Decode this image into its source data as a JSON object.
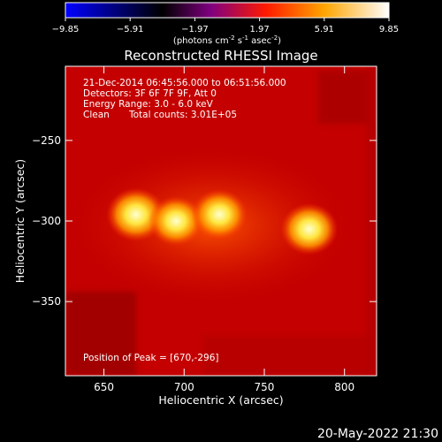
{
  "header": {
    "title": "Reconstructed RHESSI Image",
    "colorbar_unit_prefix": "(photons cm",
    "colorbar_unit_exp1": "-2",
    "colorbar_unit_mid": " s",
    "colorbar_unit_exp2": "-1",
    "colorbar_unit_mid2": " asec",
    "colorbar_unit_exp3": "-2",
    "colorbar_unit_suffix": ")"
  },
  "colorbar": {
    "range": [
      -9.85,
      9.85
    ],
    "tick_labels": [
      "−9.85",
      "−5.91",
      "−1.97",
      "1.97",
      "5.91",
      "9.85"
    ],
    "colors": [
      "#0000ff",
      "#000000",
      "#800080",
      "#ff0000",
      "#ffa500",
      "#ffffff"
    ]
  },
  "overlay": {
    "time_range": "21-Dec-2014 06:45:56.000 to 06:51:56.000",
    "detectors": "Detectors: 3F 6F 7F 9F, Att 0",
    "energy": "Energy Range: 3.0 - 6.0 keV",
    "clean_label": "Clean",
    "total_counts": "Total counts: 3.01E+05",
    "peak": "Position of Peak = [670,-296]"
  },
  "axes": {
    "xlabel": "Heliocentric X (arcsec)",
    "ylabel": "Heliocentric Y (arcsec)",
    "xlim": [
      626,
      820
    ],
    "ylim": [
      -396,
      -204
    ],
    "x_ticks": [
      650,
      700,
      750,
      800
    ],
    "y_ticks": [
      -250,
      -300,
      -350
    ]
  },
  "footer": {
    "timestamp": "20-May-2022 21:30"
  },
  "chart_data": {
    "type": "heatmap",
    "title": "Reconstructed RHESSI Image",
    "xlabel": "Heliocentric X (arcsec)",
    "ylabel": "Heliocentric Y (arcsec)",
    "xlim": [
      626,
      820
    ],
    "ylim": [
      -396,
      -204
    ],
    "colorbar_range": [
      -9.85,
      9.85
    ],
    "peak_position": [
      670,
      -296
    ],
    "sources": [
      {
        "x": 670,
        "y": -296,
        "intensity": 9.85
      },
      {
        "x": 695,
        "y": -300,
        "intensity": 8.5
      },
      {
        "x": 722,
        "y": -296,
        "intensity": 8.8
      },
      {
        "x": 778,
        "y": -305,
        "intensity": 9.2
      }
    ],
    "background_level": 3.5
  }
}
